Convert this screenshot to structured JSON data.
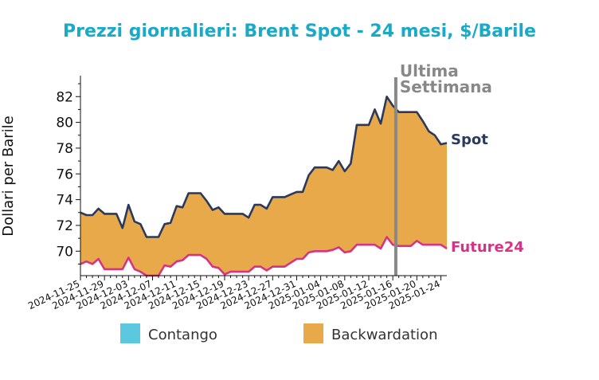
{
  "chart_data": {
    "type": "area",
    "title": "Prezzi giornalieri: Brent Spot - 24 mesi, $/Barile",
    "ylabel": "Dollari per Barile",
    "xlabel": "",
    "ylim": [
      68.1,
      83.5
    ],
    "yticks": [
      70,
      72,
      74,
      76,
      78,
      80,
      82
    ],
    "xlim": [
      "2024-11-25",
      "2025-01-24"
    ],
    "xticks": [
      "2024-11-25",
      "2024-11-29",
      "2024-12-03",
      "2024-12-07",
      "2024-12-11",
      "2024-12-15",
      "2024-12-19",
      "2024-12-23",
      "2024-12-27",
      "2024-12-31",
      "2025-01-04",
      "2025-01-08",
      "2025-01-12",
      "2025-01-16",
      "2025-01-20",
      "2025-01-24"
    ],
    "series": [
      {
        "name": "Spot",
        "color": "#2b3a5c",
        "points": [
          [
            "2024-11-25",
            73.0
          ],
          [
            "2024-11-26",
            72.8
          ],
          [
            "2024-11-27",
            72.8
          ],
          [
            "2024-11-28",
            73.3
          ],
          [
            "2024-11-29",
            72.9
          ],
          [
            "2024-11-30",
            72.9
          ],
          [
            "2024-12-01",
            72.9
          ],
          [
            "2024-12-02",
            71.8
          ],
          [
            "2024-12-03",
            73.6
          ],
          [
            "2024-12-04",
            72.3
          ],
          [
            "2024-12-05",
            72.1
          ],
          [
            "2024-12-06",
            71.1
          ],
          [
            "2024-12-07",
            71.1
          ],
          [
            "2024-12-08",
            71.1
          ],
          [
            "2024-12-09",
            72.1
          ],
          [
            "2024-12-10",
            72.2
          ],
          [
            "2024-12-11",
            73.5
          ],
          [
            "2024-12-12",
            73.4
          ],
          [
            "2024-12-13",
            74.5
          ],
          [
            "2024-12-14",
            74.5
          ],
          [
            "2024-12-15",
            74.5
          ],
          [
            "2024-12-16",
            73.9
          ],
          [
            "2024-12-17",
            73.2
          ],
          [
            "2024-12-18",
            73.4
          ],
          [
            "2024-12-19",
            72.9
          ],
          [
            "2024-12-20",
            72.9
          ],
          [
            "2024-12-21",
            72.9
          ],
          [
            "2024-12-22",
            72.9
          ],
          [
            "2024-12-23",
            72.6
          ],
          [
            "2024-12-24",
            73.6
          ],
          [
            "2024-12-25",
            73.6
          ],
          [
            "2024-12-26",
            73.3
          ],
          [
            "2024-12-27",
            74.2
          ],
          [
            "2024-12-28",
            74.2
          ],
          [
            "2024-12-29",
            74.2
          ],
          [
            "2024-12-30",
            74.4
          ],
          [
            "2024-12-31",
            74.6
          ],
          [
            "2025-01-01",
            74.6
          ],
          [
            "2025-01-02",
            75.9
          ],
          [
            "2025-01-03",
            76.5
          ],
          [
            "2025-01-04",
            76.5
          ],
          [
            "2025-01-05",
            76.5
          ],
          [
            "2025-01-06",
            76.3
          ],
          [
            "2025-01-07",
            77.0
          ],
          [
            "2025-01-08",
            76.2
          ],
          [
            "2025-01-09",
            76.8
          ],
          [
            "2025-01-10",
            79.8
          ],
          [
            "2025-01-11",
            79.8
          ],
          [
            "2025-01-12",
            79.8
          ],
          [
            "2025-01-13",
            81.0
          ],
          [
            "2025-01-14",
            79.9
          ],
          [
            "2025-01-15",
            82.0
          ],
          [
            "2025-01-16",
            81.3
          ],
          [
            "2025-01-17",
            80.8
          ],
          [
            "2025-01-18",
            80.8
          ],
          [
            "2025-01-19",
            80.8
          ],
          [
            "2025-01-20",
            80.8
          ],
          [
            "2025-01-21",
            80.1
          ],
          [
            "2025-01-22",
            79.3
          ],
          [
            "2025-01-23",
            79.0
          ],
          [
            "2025-01-24",
            78.3
          ],
          [
            "2025-01-25",
            78.4
          ]
        ]
      },
      {
        "name": "Future24",
        "color": "#d63384",
        "points": [
          [
            "2024-11-25",
            69.0
          ],
          [
            "2024-11-26",
            69.2
          ],
          [
            "2024-11-27",
            69.0
          ],
          [
            "2024-11-28",
            69.4
          ],
          [
            "2024-11-29",
            68.6
          ],
          [
            "2024-11-30",
            68.6
          ],
          [
            "2024-12-01",
            68.6
          ],
          [
            "2024-12-02",
            68.6
          ],
          [
            "2024-12-03",
            69.5
          ],
          [
            "2024-12-04",
            68.6
          ],
          [
            "2024-12-05",
            68.4
          ],
          [
            "2024-12-06",
            68.1
          ],
          [
            "2024-12-07",
            68.1
          ],
          [
            "2024-12-08",
            68.1
          ],
          [
            "2024-12-09",
            68.9
          ],
          [
            "2024-12-10",
            68.8
          ],
          [
            "2024-12-11",
            69.2
          ],
          [
            "2024-12-12",
            69.3
          ],
          [
            "2024-12-13",
            69.7
          ],
          [
            "2024-12-14",
            69.7
          ],
          [
            "2024-12-15",
            69.7
          ],
          [
            "2024-12-16",
            69.4
          ],
          [
            "2024-12-17",
            68.8
          ],
          [
            "2024-12-18",
            68.7
          ],
          [
            "2024-12-19",
            68.2
          ],
          [
            "2024-12-20",
            68.4
          ],
          [
            "2024-12-21",
            68.4
          ],
          [
            "2024-12-22",
            68.4
          ],
          [
            "2024-12-23",
            68.4
          ],
          [
            "2024-12-24",
            68.8
          ],
          [
            "2024-12-25",
            68.8
          ],
          [
            "2024-12-26",
            68.5
          ],
          [
            "2024-12-27",
            68.8
          ],
          [
            "2024-12-28",
            68.8
          ],
          [
            "2024-12-29",
            68.8
          ],
          [
            "2024-12-30",
            69.1
          ],
          [
            "2024-12-31",
            69.4
          ],
          [
            "2025-01-01",
            69.4
          ],
          [
            "2025-01-02",
            69.9
          ],
          [
            "2025-01-03",
            70.0
          ],
          [
            "2025-01-04",
            70.0
          ],
          [
            "2025-01-05",
            70.0
          ],
          [
            "2025-01-06",
            70.1
          ],
          [
            "2025-01-07",
            70.3
          ],
          [
            "2025-01-08",
            69.9
          ],
          [
            "2025-01-09",
            70.0
          ],
          [
            "2025-01-10",
            70.5
          ],
          [
            "2025-01-11",
            70.5
          ],
          [
            "2025-01-12",
            70.5
          ],
          [
            "2025-01-13",
            70.5
          ],
          [
            "2025-01-14",
            70.2
          ],
          [
            "2025-01-15",
            71.1
          ],
          [
            "2025-01-16",
            70.5
          ],
          [
            "2025-01-17",
            70.4
          ],
          [
            "2025-01-18",
            70.4
          ],
          [
            "2025-01-19",
            70.4
          ],
          [
            "2025-01-20",
            70.8
          ],
          [
            "2025-01-21",
            70.5
          ],
          [
            "2025-01-22",
            70.5
          ],
          [
            "2025-01-23",
            70.5
          ],
          [
            "2025-01-24",
            70.5
          ],
          [
            "2025-01-25",
            70.2
          ]
        ]
      }
    ],
    "fill_between": {
      "above_color": "#e8a94a",
      "label": "Backwardation",
      "contango_color": "#5bc8df",
      "contango_label": "Contango"
    },
    "annotation": {
      "text_line1": "Ultima",
      "text_line2": "Settimana",
      "date": "2025-01-17",
      "color": "#888888"
    },
    "legend": {
      "placement": "bottom",
      "items": [
        {
          "label": "Contango",
          "color": "#5bc8df"
        },
        {
          "label": "Backwardation",
          "color": "#e8a94a"
        }
      ]
    },
    "grid": false
  }
}
